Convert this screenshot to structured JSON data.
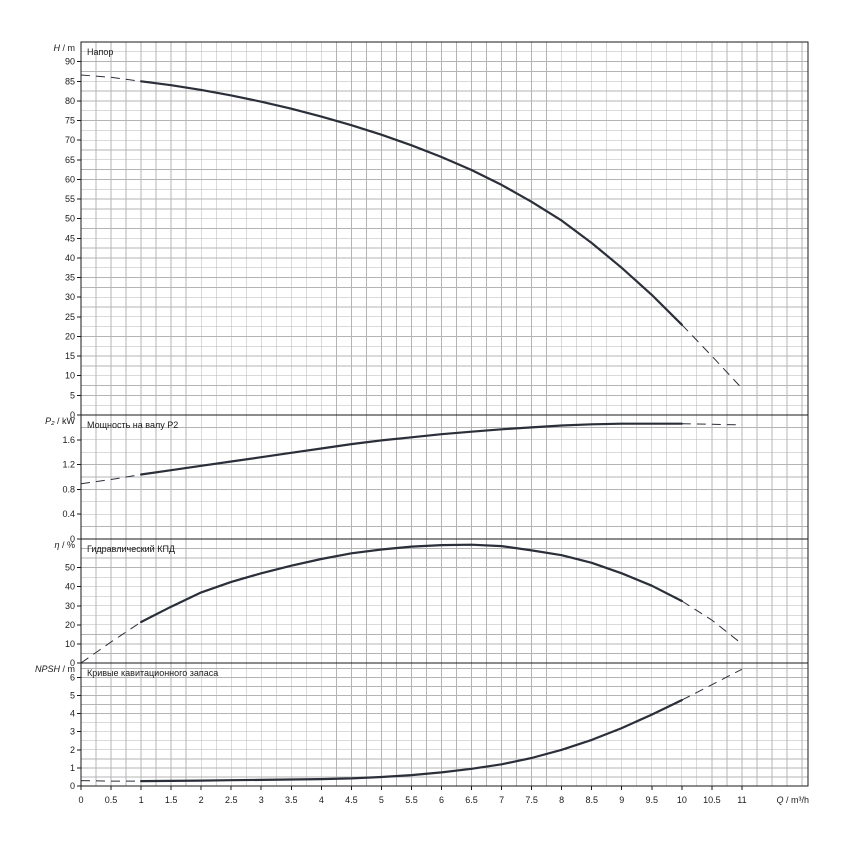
{
  "chart_data": [
    {
      "type": "line",
      "title": "Напор",
      "ylabel_var": "H",
      "ylabel_unit": "m",
      "ylim": [
        0,
        95
      ],
      "yticks": [
        0,
        5,
        10,
        15,
        20,
        25,
        30,
        35,
        40,
        45,
        50,
        55,
        60,
        65,
        70,
        75,
        80,
        85,
        90
      ],
      "ytick_labels": [
        "0",
        "5",
        "10",
        "15",
        "20",
        "25",
        "30",
        "35",
        "40",
        "45",
        "50",
        "55",
        "60",
        "65",
        "70",
        "75",
        "80",
        "85",
        "90"
      ],
      "grid": true,
      "series": [
        {
          "solid_range": [
            1,
            10
          ],
          "x": [
            0,
            0.5,
            1,
            1.5,
            2,
            2.5,
            3,
            3.5,
            4,
            4.5,
            5,
            5.5,
            6,
            6.5,
            7,
            7.5,
            8,
            8.5,
            9,
            9.5,
            10,
            10.5,
            11
          ],
          "y": [
            86.6,
            86,
            85,
            84,
            82.8,
            81.4,
            79.8,
            78,
            76,
            73.8,
            71.4,
            68.7,
            65.7,
            62.4,
            58.6,
            54.3,
            49.5,
            43.8,
            37.5,
            30.6,
            23,
            15,
            6.8
          ]
        }
      ]
    },
    {
      "type": "line",
      "title": "Мощность на валу P2",
      "ylabel_var": "P₂",
      "ylabel_unit": "kW",
      "ylim": [
        0,
        2.0
      ],
      "yticks": [
        0,
        0.4,
        0.8,
        1.2,
        1.6
      ],
      "ytick_labels": [
        "0",
        "0.4",
        "0.8",
        "1.2",
        "1.6"
      ],
      "grid": true,
      "series": [
        {
          "solid_range": [
            1,
            10
          ],
          "x": [
            0,
            0.5,
            1,
            1.5,
            2,
            2.5,
            3,
            3.5,
            4,
            4.5,
            5,
            5.5,
            6,
            6.5,
            7,
            7.5,
            8,
            8.5,
            9,
            9.5,
            10,
            10.5,
            11
          ],
          "y": [
            0.89,
            0.96,
            1.04,
            1.11,
            1.18,
            1.25,
            1.32,
            1.39,
            1.46,
            1.53,
            1.59,
            1.64,
            1.69,
            1.73,
            1.77,
            1.8,
            1.83,
            1.85,
            1.86,
            1.86,
            1.86,
            1.85,
            1.84
          ]
        }
      ]
    },
    {
      "type": "line",
      "title": "Гидравлический КПД",
      "ylabel_var": "η",
      "ylabel_unit": "%",
      "ylim": [
        0,
        65
      ],
      "yticks": [
        0,
        10,
        20,
        30,
        40,
        50
      ],
      "ytick_labels": [
        "0",
        "10",
        "20",
        "30",
        "40",
        "50"
      ],
      "grid": true,
      "series": [
        {
          "solid_range": [
            1,
            10
          ],
          "x": [
            0,
            0.5,
            1,
            1.5,
            2,
            2.5,
            3,
            3.5,
            4,
            4.5,
            5,
            5.5,
            6,
            6.5,
            7,
            7.5,
            8,
            8.5,
            9,
            9.5,
            10,
            10.5,
            11
          ],
          "y": [
            0,
            11,
            21.5,
            29.5,
            37,
            42.5,
            47,
            51,
            54.5,
            57.5,
            59.5,
            61,
            61.8,
            62,
            61.3,
            59,
            56.5,
            52.5,
            47,
            40.5,
            32.5,
            22.5,
            10
          ]
        }
      ]
    },
    {
      "type": "line",
      "title": "Кривые кавитационного запаса",
      "ylabel_var": "NPSH",
      "ylabel_unit": "m",
      "ylim": [
        0,
        6.8
      ],
      "yticks": [
        0,
        1,
        2,
        3,
        4,
        5,
        6
      ],
      "ytick_labels": [
        "0",
        "1",
        "2",
        "3",
        "4",
        "5",
        "6"
      ],
      "grid": true,
      "series": [
        {
          "solid_range": [
            1,
            10
          ],
          "x": [
            0,
            0.5,
            1,
            1.5,
            2,
            2.5,
            3,
            3.5,
            4,
            4.5,
            5,
            5.5,
            6,
            6.5,
            7,
            7.5,
            8,
            8.5,
            9,
            9.5,
            10,
            10.5,
            11
          ],
          "y": [
            0.3,
            0.27,
            0.27,
            0.28,
            0.3,
            0.32,
            0.34,
            0.36,
            0.38,
            0.42,
            0.5,
            0.6,
            0.75,
            0.95,
            1.2,
            1.55,
            2.0,
            2.55,
            3.2,
            3.95,
            4.75,
            5.6,
            6.45
          ]
        }
      ]
    }
  ],
  "x_axis": {
    "label_var": "Q",
    "label_unit": "m³/h",
    "xlim": [
      0,
      12.1
    ],
    "ticks": [
      0,
      0.5,
      1,
      1.5,
      2,
      2.5,
      3,
      3.5,
      4,
      4.5,
      5,
      5.5,
      6,
      6.5,
      7,
      7.5,
      8,
      8.5,
      9,
      9.5,
      10,
      10.5,
      11
    ],
    "tick_labels": [
      "0",
      "0.5",
      "1",
      "1.5",
      "2",
      "2.5",
      "3",
      "3.5",
      "4",
      "4.5",
      "5",
      "5.5",
      "6",
      "6.5",
      "7",
      "7.5",
      "8",
      "8.5",
      "9",
      "9.5",
      "10",
      "10.5",
      "11"
    ]
  }
}
